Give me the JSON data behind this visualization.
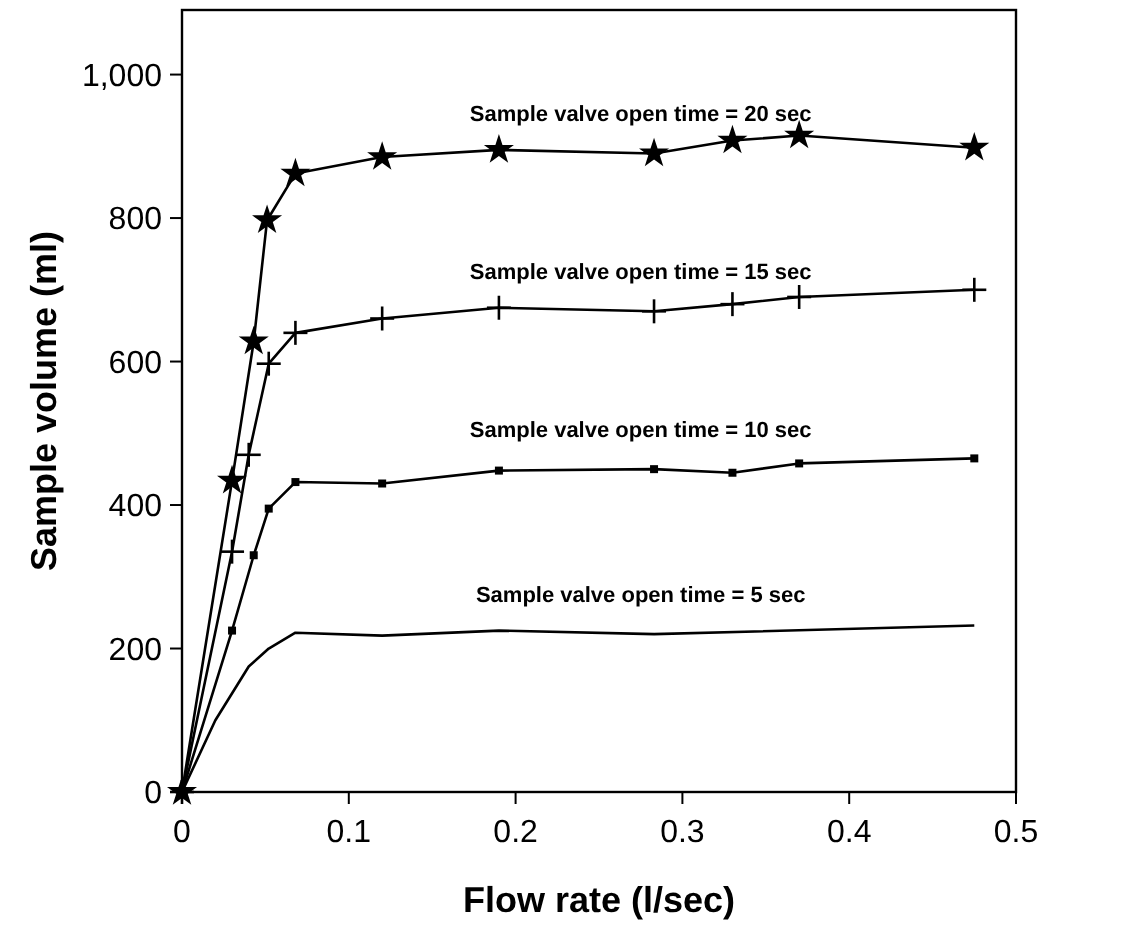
{
  "chart_data": {
    "type": "line",
    "xlabel": "Flow rate (l/sec)",
    "ylabel": "Sample volume (ml)",
    "xlim": [
      0,
      0.5
    ],
    "xticks": [
      0,
      0.1,
      0.2,
      0.3,
      0.4,
      0.5
    ],
    "ylim": [
      0,
      1090
    ],
    "yticks": [
      0,
      200,
      400,
      600,
      800,
      {
        "value": 1000,
        "label": "1,000"
      }
    ],
    "grid": false,
    "line_style": "solid",
    "series": [
      {
        "color": "#000000",
        "marker": "star",
        "x": [
          0,
          0.03,
          0.043,
          0.051,
          0.068,
          0.12,
          0.19,
          0.283,
          0.33,
          0.37,
          0.475
        ],
        "values": [
          0,
          434,
          628,
          797,
          862,
          885,
          895,
          890,
          908,
          915,
          898
        ]
      },
      {
        "color": "#000000",
        "marker": "cross",
        "x": [
          0,
          0.03,
          0.04,
          0.052,
          0.068,
          0.12,
          0.19,
          0.283,
          0.33,
          0.37,
          0.475
        ],
        "values": [
          0,
          335,
          470,
          597,
          640,
          660,
          675,
          670,
          680,
          690,
          700
        ]
      },
      {
        "color": "#000000",
        "marker": "square",
        "x": [
          0,
          0.03,
          0.043,
          0.052,
          0.068,
          0.12,
          0.19,
          0.283,
          0.33,
          0.37,
          0.475
        ],
        "values": [
          0,
          225,
          330,
          395,
          432,
          430,
          448,
          450,
          445,
          458,
          465
        ]
      },
      {
        "color": "#000000",
        "marker": "none",
        "x": [
          0,
          0.02,
          0.04,
          0.052,
          0.068,
          0.12,
          0.19,
          0.283,
          0.475
        ],
        "values": [
          0,
          100,
          175,
          200,
          222,
          218,
          225,
          220,
          232
        ]
      }
    ],
    "annotations": [
      "Sample valve open time = 20 sec",
      "Sample valve open time = 15 sec",
      "Sample valve open time = 10 sec",
      "Sample valve open time = 5 sec"
    ]
  }
}
